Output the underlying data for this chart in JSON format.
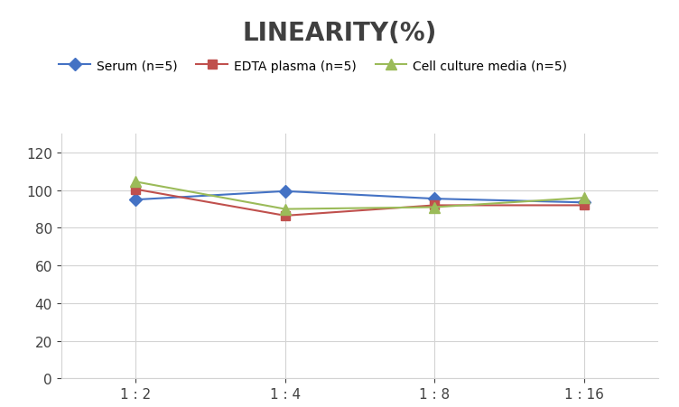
{
  "title": "LINEARITY(%)",
  "title_fontsize": 20,
  "title_fontweight": "bold",
  "title_color": "#404040",
  "x_labels": [
    "1 : 2",
    "1 : 4",
    "1 : 8",
    "1 : 16"
  ],
  "x_positions": [
    0,
    1,
    2,
    3
  ],
  "series": [
    {
      "label": "Serum (n=5)",
      "color": "#4472C4",
      "marker": "D",
      "markersize": 7,
      "values": [
        95,
        99.5,
        95.5,
        93.5
      ]
    },
    {
      "label": "EDTA plasma (n=5)",
      "color": "#C0504D",
      "marker": "s",
      "markersize": 7,
      "values": [
        100.5,
        86.5,
        92,
        92
      ]
    },
    {
      "label": "Cell culture media (n=5)",
      "color": "#9BBB59",
      "marker": "^",
      "markersize": 8,
      "values": [
        104.5,
        90,
        91,
        96
      ]
    }
  ],
  "ylim": [
    0,
    130
  ],
  "yticks": [
    0,
    20,
    40,
    60,
    80,
    100,
    120
  ],
  "grid_color": "#D3D3D3",
  "background_color": "#FFFFFF",
  "legend_fontsize": 10,
  "tick_fontsize": 11
}
